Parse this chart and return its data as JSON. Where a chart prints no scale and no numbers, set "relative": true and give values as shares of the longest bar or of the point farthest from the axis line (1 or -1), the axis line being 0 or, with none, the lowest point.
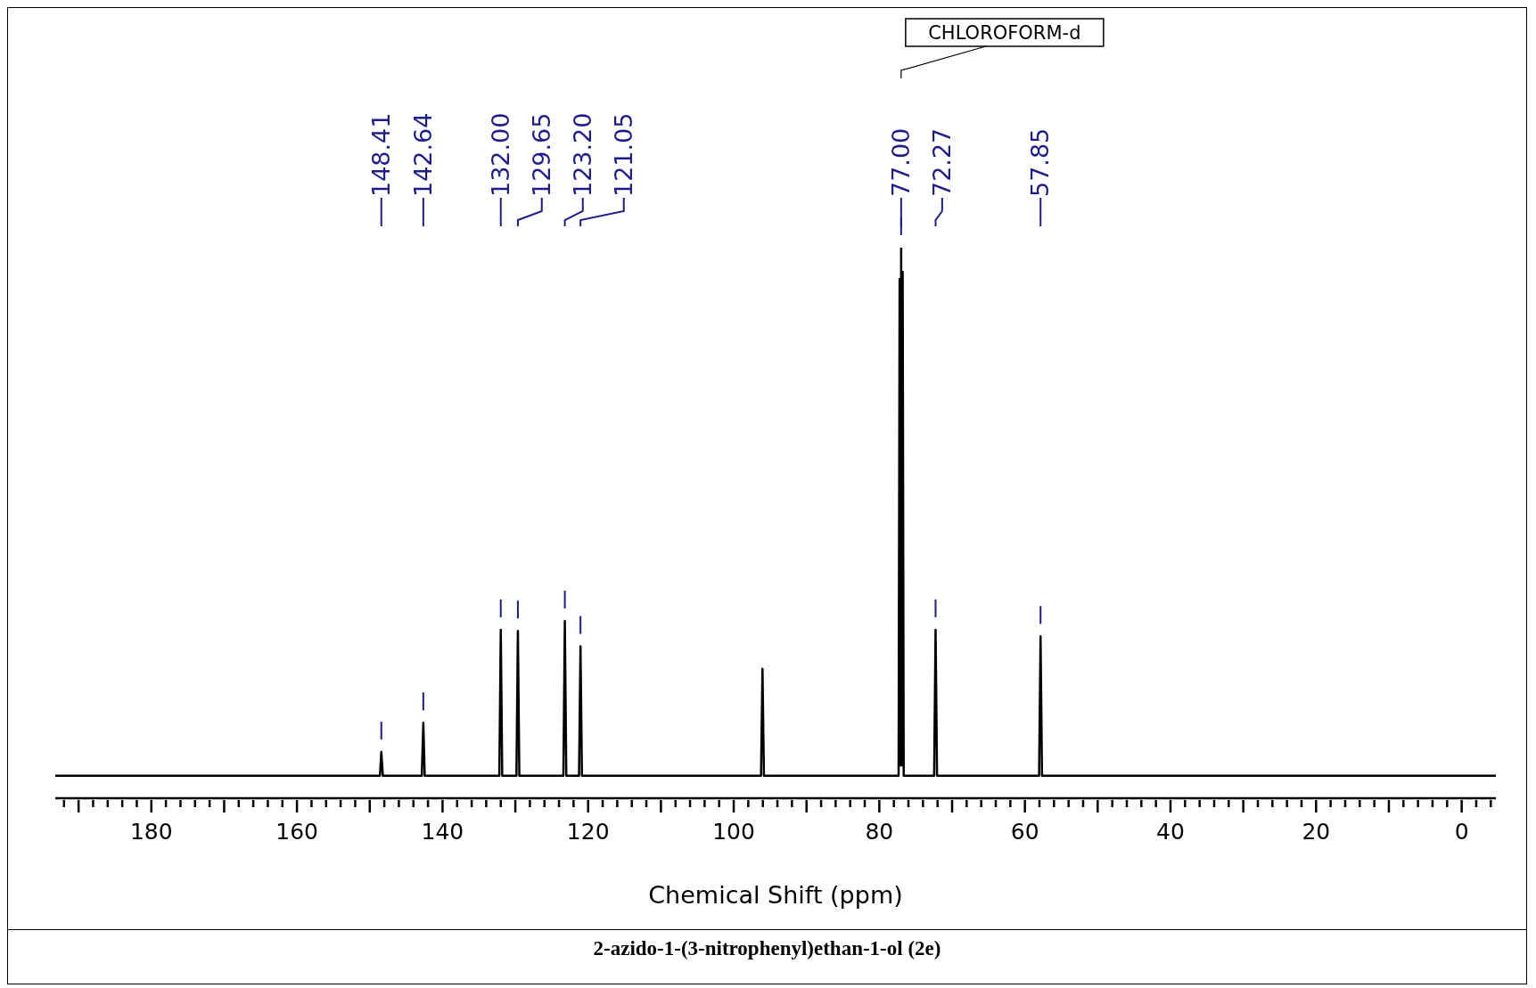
{
  "chart_data": {
    "type": "line",
    "title": "2-azido-1-(3-nitrophenyl)ethan-1-ol (2e)",
    "xlabel": "Chemical Shift (ppm)",
    "relative": true,
    "marker": "none",
    "line_style": "solid",
    "tick_labels": "x",
    "xlim": [
      193.2,
      -4.7
    ],
    "xticks": [
      {
        "value": 192,
        "label": null
      },
      {
        "value": 190,
        "label": null
      },
      {
        "value": 188,
        "label": null
      },
      {
        "value": 186,
        "label": null
      },
      {
        "value": 184,
        "label": null
      },
      {
        "value": 182,
        "label": null
      },
      180,
      {
        "value": 178,
        "label": null
      },
      {
        "value": 176,
        "label": null
      },
      {
        "value": 174,
        "label": null
      },
      {
        "value": 172,
        "label": null
      },
      {
        "value": 170,
        "label": null
      },
      {
        "value": 168,
        "label": null
      },
      {
        "value": 166,
        "label": null
      },
      {
        "value": 164,
        "label": null
      },
      {
        "value": 162,
        "label": null
      },
      160,
      {
        "value": 158,
        "label": null
      },
      {
        "value": 156,
        "label": null
      },
      {
        "value": 154,
        "label": null
      },
      {
        "value": 152,
        "label": null
      },
      {
        "value": 150,
        "label": null
      },
      {
        "value": 148,
        "label": null
      },
      {
        "value": 146,
        "label": null
      },
      {
        "value": 144,
        "label": null
      },
      {
        "value": 142,
        "label": null
      },
      140,
      {
        "value": 138,
        "label": null
      },
      {
        "value": 136,
        "label": null
      },
      {
        "value": 134,
        "label": null
      },
      {
        "value": 132,
        "label": null
      },
      {
        "value": 130,
        "label": null
      },
      {
        "value": 128,
        "label": null
      },
      {
        "value": 126,
        "label": null
      },
      {
        "value": 124,
        "label": null
      },
      {
        "value": 122,
        "label": null
      },
      120,
      {
        "value": 118,
        "label": null
      },
      {
        "value": 116,
        "label": null
      },
      {
        "value": 114,
        "label": null
      },
      {
        "value": 112,
        "label": null
      },
      {
        "value": 110,
        "label": null
      },
      {
        "value": 108,
        "label": null
      },
      {
        "value": 106,
        "label": null
      },
      {
        "value": 104,
        "label": null
      },
      {
        "value": 102,
        "label": null
      },
      100,
      {
        "value": 98,
        "label": null
      },
      {
        "value": 96,
        "label": null
      },
      {
        "value": 94,
        "label": null
      },
      {
        "value": 92,
        "label": null
      },
      {
        "value": 90,
        "label": null
      },
      {
        "value": 88,
        "label": null
      },
      {
        "value": 86,
        "label": null
      },
      {
        "value": 84,
        "label": null
      },
      {
        "value": 82,
        "label": null
      },
      80,
      {
        "value": 78,
        "label": null
      },
      {
        "value": 76,
        "label": null
      },
      {
        "value": 74,
        "label": null
      },
      {
        "value": 72,
        "label": null
      },
      {
        "value": 70,
        "label": null
      },
      {
        "value": 68,
        "label": null
      },
      {
        "value": 66,
        "label": null
      },
      {
        "value": 64,
        "label": null
      },
      {
        "value": 62,
        "label": null
      },
      60,
      {
        "value": 58,
        "label": null
      },
      {
        "value": 56,
        "label": null
      },
      {
        "value": 54,
        "label": null
      },
      {
        "value": 52,
        "label": null
      },
      {
        "value": 50,
        "label": null
      },
      {
        "value": 48,
        "label": null
      },
      {
        "value": 46,
        "label": null
      },
      {
        "value": 44,
        "label": null
      },
      {
        "value": 42,
        "label": null
      },
      40,
      {
        "value": 38,
        "label": null
      },
      {
        "value": 36,
        "label": null
      },
      {
        "value": 34,
        "label": null
      },
      {
        "value": 32,
        "label": null
      },
      {
        "value": 30,
        "label": null
      },
      {
        "value": 28,
        "label": null
      },
      {
        "value": 26,
        "label": null
      },
      {
        "value": 24,
        "label": null
      },
      {
        "value": 22,
        "label": null
      },
      20,
      {
        "value": 18,
        "label": null
      },
      {
        "value": 16,
        "label": null
      },
      {
        "value": 14,
        "label": null
      },
      {
        "value": 12,
        "label": null
      },
      {
        "value": 10,
        "label": null
      },
      {
        "value": 8,
        "label": null
      },
      {
        "value": 6,
        "label": null
      },
      {
        "value": 4,
        "label": null
      },
      {
        "value": 2,
        "label": null
      },
      0,
      {
        "value": -2,
        "label": null
      },
      {
        "value": -4,
        "label": null
      }
    ],
    "series": [
      {
        "color": "#000000",
        "x": [
          193.2,
          148.6,
          148.41,
          148.2,
          142.85,
          142.64,
          142.45,
          132.2,
          132.0,
          131.8,
          129.85,
          129.65,
          129.45,
          123.4,
          123.2,
          123.0,
          121.25,
          121.05,
          120.85,
          96.25,
          96.05,
          95.85,
          77.35,
          77.21,
          77.1,
          77.0,
          76.9,
          76.79,
          76.65,
          72.47,
          72.27,
          72.07,
          58.05,
          57.85,
          57.65,
          -4.7
        ],
        "values": [
          0.041,
          0.041,
          0.084,
          0.041,
          0.041,
          0.137,
          0.041,
          0.041,
          0.306,
          0.041,
          0.041,
          0.304,
          0.041,
          0.041,
          0.322,
          0.041,
          0.041,
          0.276,
          0.041,
          0.041,
          0.235,
          0.041,
          0.041,
          0.943,
          0.06,
          1,
          0.06,
          0.956,
          0.041,
          0.041,
          0.306,
          0.041,
          0.041,
          0.294,
          0.041,
          0.041
        ]
      }
    ],
    "annotations": [
      {
        "text": "148.41",
        "x": 148.41
      },
      {
        "text": "142.64",
        "x": 142.64
      },
      {
        "text": "132.00",
        "x": 132.0
      },
      {
        "text": "129.65",
        "x": 129.65
      },
      {
        "text": "123.20",
        "x": 123.2
      },
      {
        "text": "121.05",
        "x": 121.05
      },
      {
        "text": "77.00",
        "x": 77.0
      },
      {
        "text": "72.27",
        "x": 72.27
      },
      {
        "text": "57.85",
        "x": 57.85
      },
      "CHLOROFORM-d"
    ]
  }
}
